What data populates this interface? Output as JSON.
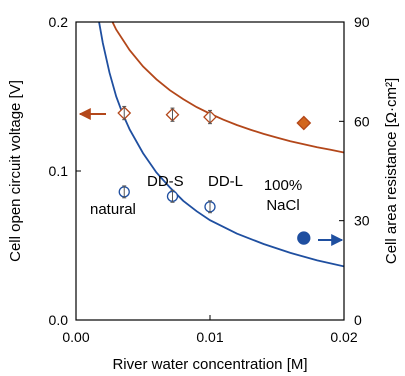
{
  "chart_data": {
    "type": "scatter",
    "xlabel": "River water concentration [M]",
    "ylabel_left": "Cell open circuit voltage [V]",
    "ylabel_right": "Cell area resistance [Ω·cm²]",
    "xlim": [
      0,
      0.02
    ],
    "ylim_left": [
      0,
      0.2
    ],
    "ylim_right": [
      0,
      90
    ],
    "x_ticks": [
      0.0,
      0.01,
      0.02
    ],
    "x_tick_labels": [
      "0.00",
      "0.01",
      "0.02"
    ],
    "y_left_ticks": [
      0,
      0.1,
      0.2
    ],
    "y_left_tick_labels": [
      "0.0",
      "0.1",
      "0.2"
    ],
    "y_right_ticks": [
      0,
      30,
      60,
      90
    ],
    "y_right_tick_labels": [
      "0",
      "30",
      "60",
      "90"
    ],
    "grid": false,
    "colors": {
      "voltage": "#1f4fa0",
      "resistance": "#b3471a",
      "resistance_fill": "#d2661e"
    },
    "voltage_curve": {
      "axis": "left",
      "x": [
        0.0017,
        0.002,
        0.0025,
        0.003,
        0.0035,
        0.004,
        0.005,
        0.006,
        0.007,
        0.008,
        0.009,
        0.01,
        0.012,
        0.014,
        0.016,
        0.018,
        0.02
      ],
      "y": [
        0.201,
        0.186,
        0.166,
        0.15,
        0.138,
        0.128,
        0.112,
        0.099,
        0.089,
        0.08,
        0.073,
        0.067,
        0.058,
        0.051,
        0.045,
        0.04,
        0.036
      ]
    },
    "resistance_curve": {
      "axis": "right",
      "x": [
        0.0017,
        0.002,
        0.003,
        0.004,
        0.005,
        0.006,
        0.007,
        0.008,
        0.009,
        0.01,
        0.011,
        0.012,
        0.013,
        0.014,
        0.015,
        0.016,
        0.017,
        0.018,
        0.019,
        0.02
      ],
      "y": [
        99.5,
        96.0,
        87.7,
        81.5,
        76.6,
        72.7,
        69.4,
        66.7,
        64.3,
        62.3,
        60.5,
        58.9,
        57.5,
        56.2,
        55.1,
        54.0,
        53.1,
        52.2,
        51.4,
        50.6
      ]
    },
    "voltage_points": [
      {
        "label": "natural",
        "x": 0.0036,
        "y": 0.086,
        "err": 0.004
      },
      {
        "label": "DD-S",
        "x": 0.0072,
        "y": 0.083,
        "err": 0.004
      },
      {
        "label": "DD-L",
        "x": 0.01,
        "y": 0.076,
        "err": 0.004
      },
      {
        "label": "100% NaCl",
        "x": 0.017,
        "y": 0.055,
        "err": 0
      }
    ],
    "resistance_points": [
      {
        "label": "natural",
        "x": 0.0036,
        "y": 62.5,
        "err": 2.0
      },
      {
        "label": "DD-S",
        "x": 0.0072,
        "y": 62.0,
        "err": 2.0
      },
      {
        "label": "DD-L",
        "x": 0.01,
        "y": 61.3,
        "err": 2.0
      },
      {
        "label": "100% NaCl",
        "x": 0.017,
        "y": 59.5,
        "err": 0
      }
    ],
    "annotations": {
      "natural": "natural",
      "dds": "DD-S",
      "ddl": "DD-L",
      "nacl_line1": "100%",
      "nacl_line2": "NaCl"
    }
  }
}
